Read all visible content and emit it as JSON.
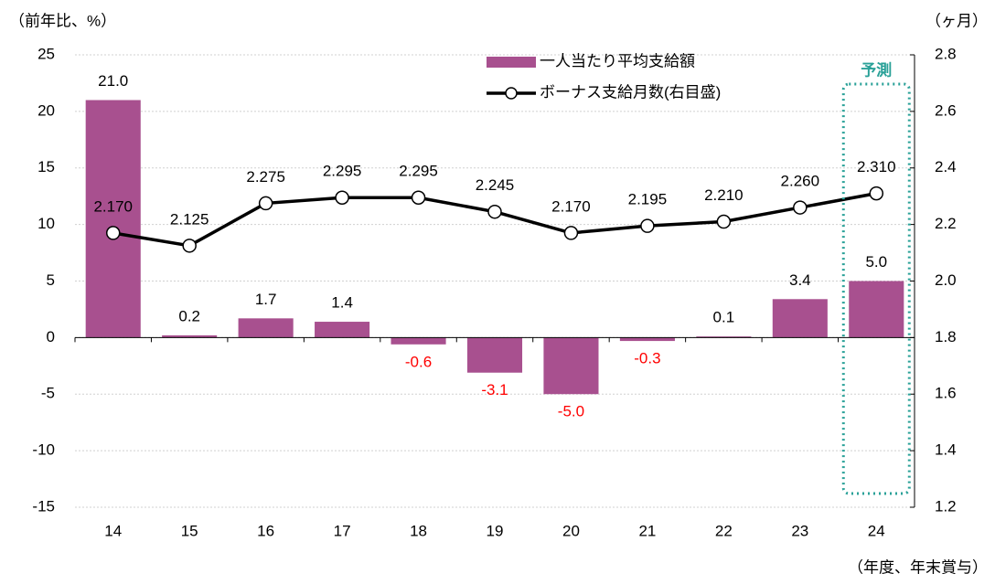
{
  "chart_data": {
    "type": "bar_line",
    "y_label": "（前年比、%）",
    "y2_label": "（ヶ月）",
    "x_label": "（年度、年末賞与）",
    "categories": [
      "14",
      "15",
      "16",
      "17",
      "18",
      "19",
      "20",
      "21",
      "22",
      "23",
      "24"
    ],
    "series": [
      {
        "name": "一人当たり平均支給額",
        "type": "bar",
        "color": "#a8508f",
        "values": [
          21.0,
          0.2,
          1.7,
          1.4,
          -0.6,
          -3.1,
          -5.0,
          -0.3,
          0.1,
          3.4,
          5.0
        ],
        "value_labels": [
          "21.0",
          "0.2",
          "1.7",
          "1.4",
          "-0.6",
          "-3.1",
          "-5.0",
          "-0.3",
          "0.1",
          "3.4",
          "5.0"
        ]
      },
      {
        "name": "ボーナス支給月数(右目盛)",
        "type": "line",
        "axis": "y2",
        "color": "#000000",
        "values": [
          2.17,
          2.125,
          2.275,
          2.295,
          2.295,
          2.245,
          2.17,
          2.195,
          2.21,
          2.26,
          2.31
        ],
        "value_labels": [
          "2.170",
          "2.125",
          "2.275",
          "2.295",
          "2.295",
          "2.245",
          "2.170",
          "2.195",
          "2.210",
          "2.260",
          "2.310"
        ]
      }
    ],
    "negative_label_color": "#ff0000",
    "ylim": [
      -15,
      25
    ],
    "yticks": [
      -15,
      -10,
      -5,
      0,
      5,
      10,
      15,
      20,
      25
    ],
    "y2lim": [
      1.2,
      2.8
    ],
    "y2ticks": [
      1.2,
      1.4,
      1.6,
      1.8,
      {
        "value": 2.0,
        "label": "2.0"
      },
      2.2,
      2.4,
      2.6,
      2.8
    ],
    "grid": true,
    "annotation": {
      "label": "予測",
      "color": "#2aa198"
    }
  }
}
